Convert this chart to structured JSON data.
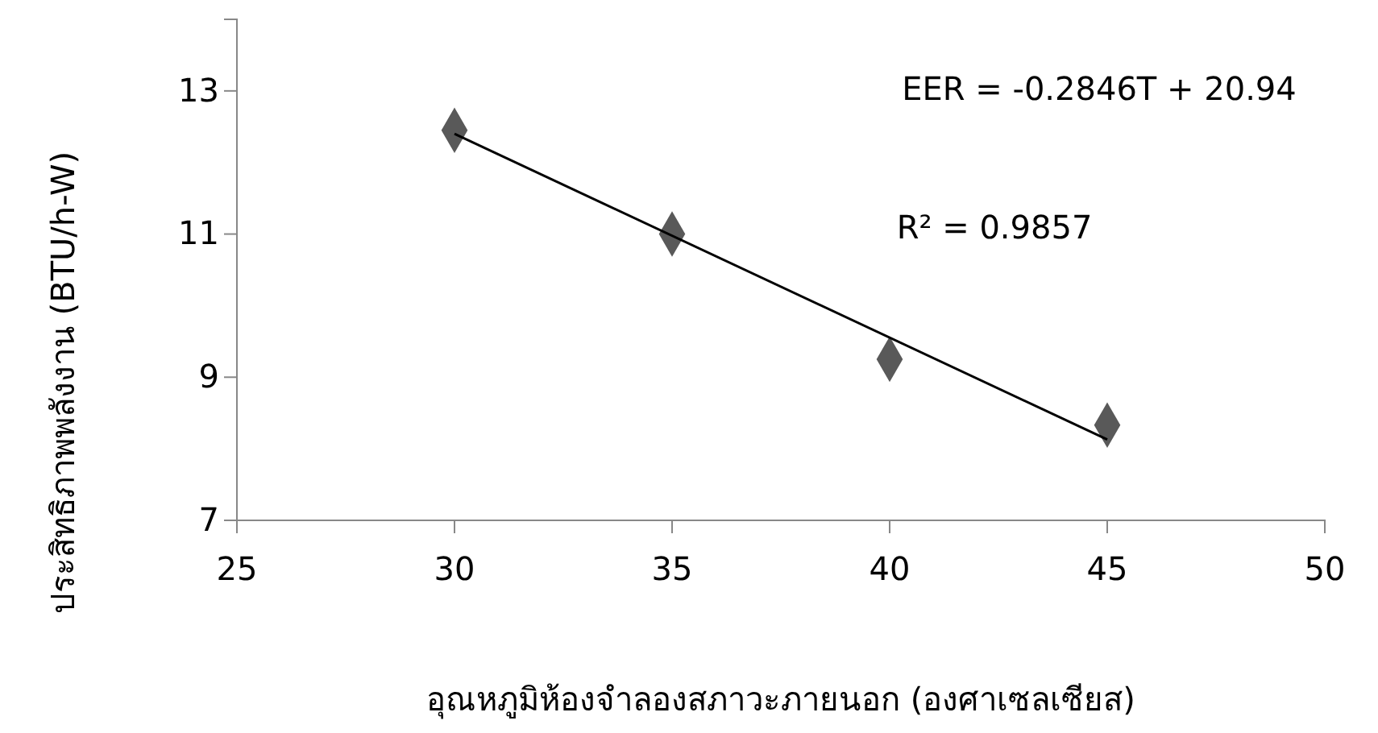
{
  "chart_data": {
    "type": "scatter",
    "xlabel": "อุณหภูมิห้องจำลองสภาวะภายนอก (องศาเซลเซียส)",
    "ylabel": "ประสิทธิภาพพลังงาน (BTU/h-W)",
    "series": [
      {
        "color": "#595959",
        "x": [
          30,
          35,
          40,
          45
        ],
        "values": [
          12.45,
          11.0,
          9.25,
          8.33
        ],
        "marker": "diamond"
      },
      {
        "type": "line",
        "color": "#000000",
        "x": [
          30,
          45
        ],
        "values": [
          12.4,
          8.13
        ]
      }
    ],
    "xlim": [
      25,
      50
    ],
    "xticks": [
      25,
      30,
      35,
      40,
      45,
      50
    ],
    "ylim": [
      7,
      14
    ],
    "yticks": [
      7,
      9,
      11,
      13
    ],
    "grid": false,
    "annotations": [
      "EER = -0.2846T + 20.94",
      "R² = 0.9857"
    ]
  }
}
